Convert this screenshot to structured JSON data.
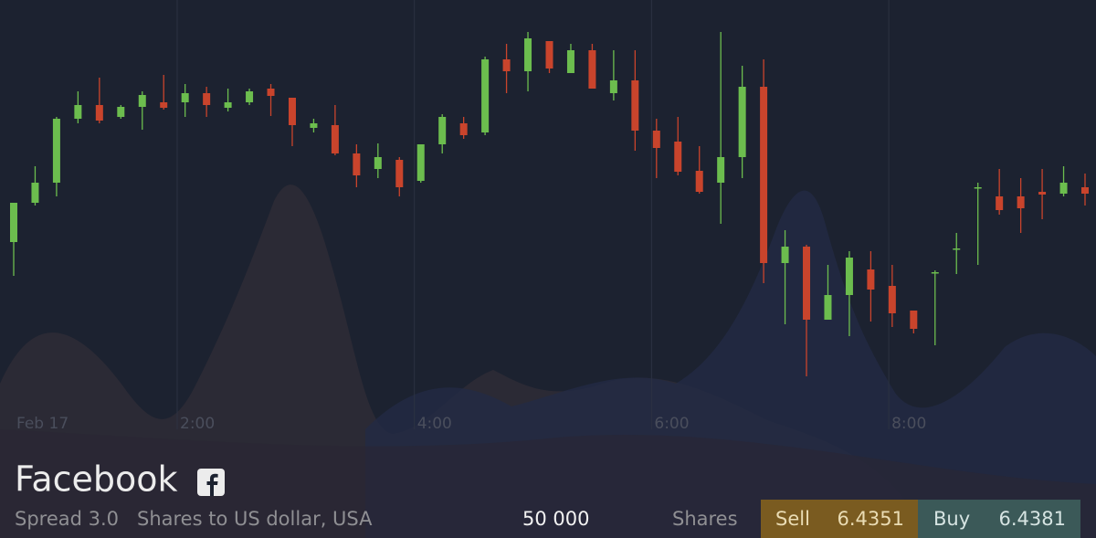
{
  "chart_data": {
    "type": "candlestick",
    "x_labels": [
      "Feb 17",
      "2:00",
      "4:00",
      "6:00",
      "8:00"
    ],
    "open": [
      335,
      378,
      400,
      470,
      485,
      472,
      483,
      488,
      488,
      498,
      482,
      488,
      503,
      493,
      460,
      463,
      432,
      415,
      425,
      402,
      442,
      465,
      455,
      535,
      522,
      555,
      520,
      545,
      498,
      512,
      457,
      445,
      413,
      400,
      428,
      505,
      312,
      330,
      250,
      277,
      305,
      287,
      260,
      302,
      328,
      395,
      385,
      385,
      390,
      388,
      395
    ],
    "close": [
      378,
      400,
      470,
      485,
      468,
      483,
      496,
      482,
      498,
      485,
      488,
      500,
      495,
      463,
      465,
      432,
      408,
      428,
      395,
      442,
      472,
      452,
      535,
      522,
      558,
      525,
      545,
      503,
      512,
      457,
      438,
      412,
      390,
      428,
      505,
      312,
      330,
      250,
      277,
      318,
      283,
      257,
      240,
      302,
      328,
      395,
      370,
      372,
      387,
      400,
      388
    ],
    "high": [
      378,
      418,
      472,
      500,
      515,
      485,
      500,
      518,
      508,
      505,
      503,
      503,
      508,
      493,
      470,
      485,
      442,
      443,
      428,
      442,
      475,
      472,
      538,
      552,
      565,
      555,
      552,
      552,
      545,
      545,
      470,
      472,
      440,
      565,
      528,
      535,
      348,
      332,
      310,
      325,
      325,
      310,
      260,
      304,
      345,
      400,
      415,
      405,
      415,
      418,
      410
    ],
    "low": [
      298,
      375,
      385,
      465,
      465,
      470,
      458,
      480,
      472,
      472,
      478,
      485,
      473,
      440,
      455,
      430,
      395,
      405,
      385,
      400,
      432,
      448,
      452,
      498,
      500,
      520,
      522,
      503,
      490,
      435,
      405,
      408,
      388,
      355,
      405,
      290,
      245,
      188,
      250,
      232,
      248,
      242,
      235,
      222,
      300,
      310,
      365,
      345,
      360,
      385,
      375
    ],
    "ylim": [
      0,
      600
    ],
    "up_color": "#6cbd4e",
    "down_color": "#c9442c"
  },
  "instrument": {
    "name": "Facebook",
    "spread": "Spread 3.0",
    "description": "Shares to US dollar, USA",
    "amount": "50 000",
    "unit": "Shares",
    "sell": {
      "label": "Sell",
      "price": "6.4351"
    },
    "buy": {
      "label": "Buy",
      "price": "6.4381"
    }
  }
}
